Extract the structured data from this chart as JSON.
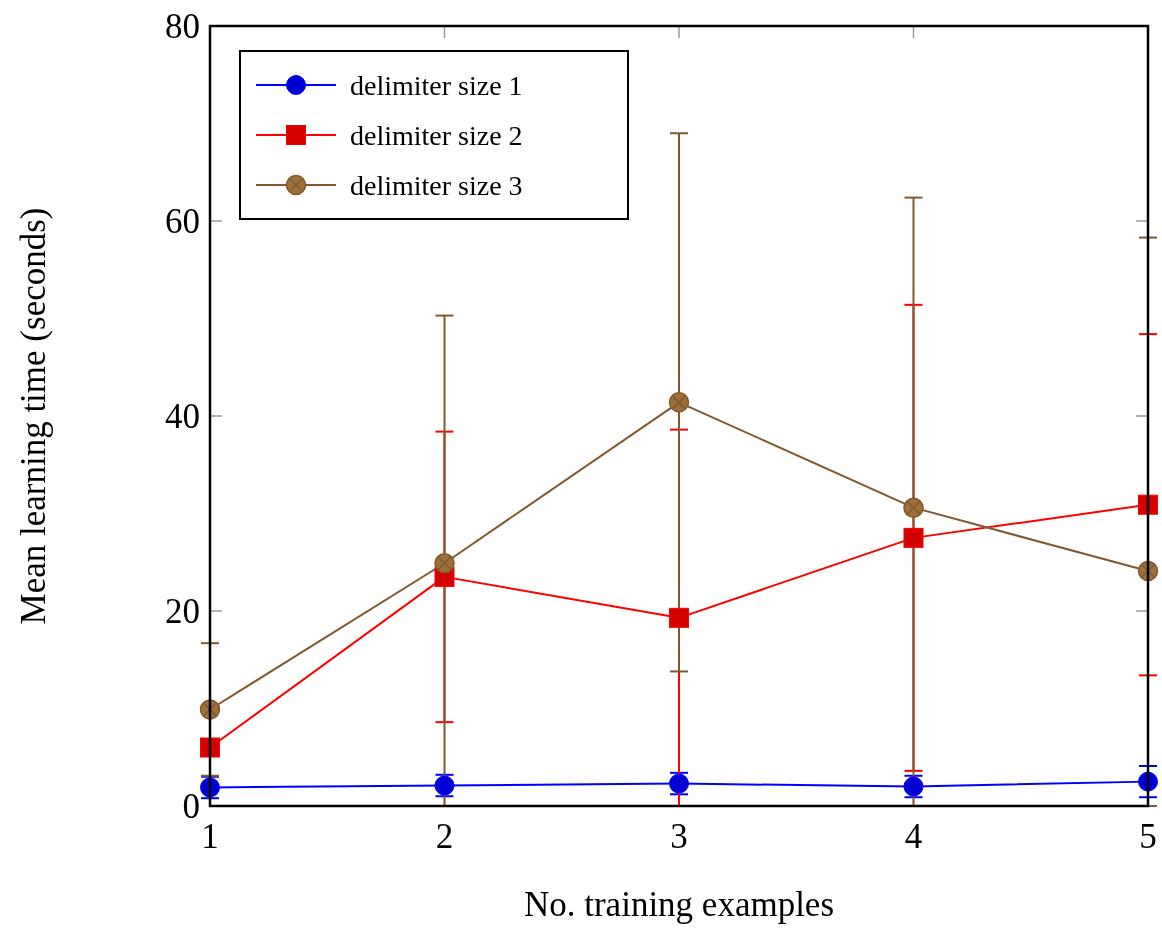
{
  "chart_data": {
    "type": "line",
    "xlabel": "No. training examples",
    "ylabel": "Mean learning time (seconds)",
    "x": [
      1,
      2,
      3,
      4,
      5
    ],
    "xlim": [
      1,
      5
    ],
    "xticks": [
      1,
      2,
      3,
      4,
      5
    ],
    "ylim": [
      0,
      80
    ],
    "yticks": [
      0,
      20,
      40,
      60,
      80
    ],
    "legend": "top left",
    "series": [
      {
        "name": "delimiter size 1",
        "color": "#0000ff",
        "marker": "circle",
        "values": [
          1.9,
          2.1,
          2.3,
          2.0,
          2.5
        ],
        "errors": [
          1.1,
          1.1,
          1.1,
          1.1,
          1.6
        ]
      },
      {
        "name": "delimiter size 2",
        "color": "#ff0000",
        "marker": "square",
        "values": [
          6.0,
          23.5,
          19.3,
          27.5,
          30.9
        ],
        "errors": [
          null,
          14.9,
          19.3,
          23.9,
          17.5
        ]
      },
      {
        "name": "delimiter size 3",
        "color": "#7f5a30",
        "marker": "circle",
        "values": [
          9.9,
          24.9,
          41.4,
          30.6,
          24.1
        ],
        "errors": [
          6.8,
          [
            0,
            50.3
          ],
          27.6,
          [
            0,
            62.4
          ],
          [
            0,
            58.3
          ]
        ]
      }
    ]
  }
}
